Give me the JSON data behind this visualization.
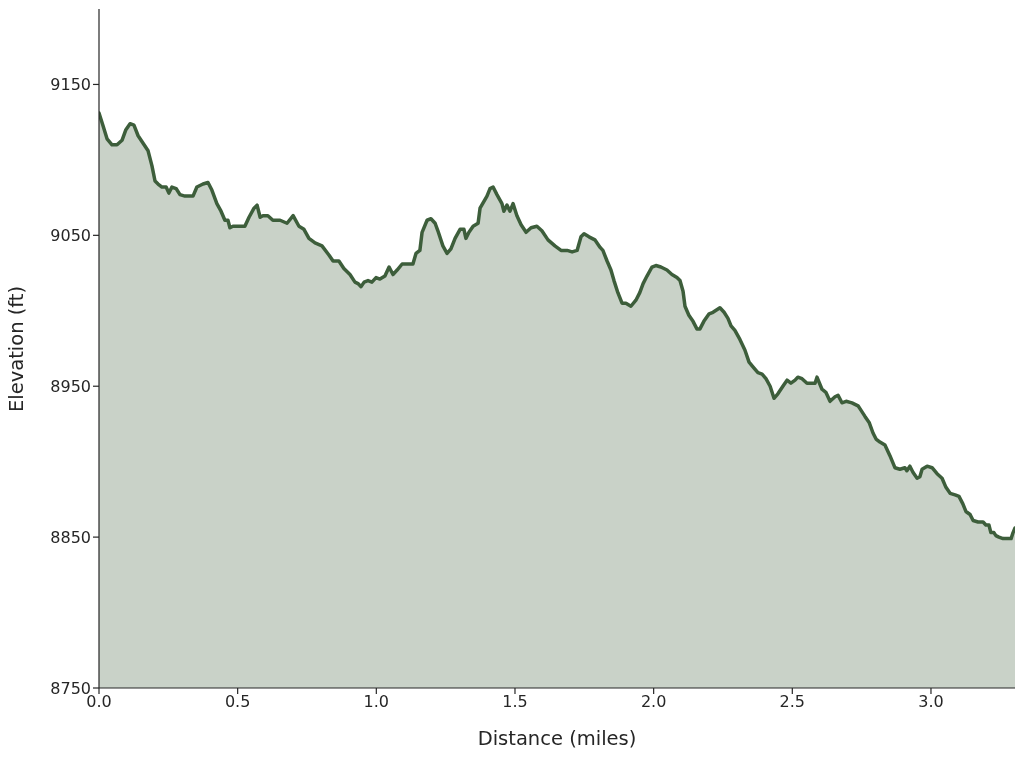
{
  "chart_data": {
    "type": "area",
    "xlabel": "Distance (miles)",
    "ylabel": "Elevation (ft)",
    "color": "#3d5e3b",
    "xlim": [
      0,
      3.303
    ],
    "ylim": [
      8750,
      9200
    ],
    "xticks": [
      {
        "value": 0,
        "label": "0.0"
      },
      0.5,
      {
        "value": 1,
        "label": "1.0"
      },
      1.5,
      {
        "value": 2,
        "label": "2.0"
      },
      2.5,
      {
        "value": 3,
        "label": "3.0"
      }
    ],
    "yticks": [
      8750,
      8850,
      8950,
      9050,
      9150
    ],
    "x": [
      0,
      0.014,
      0.029,
      0.047,
      0.065,
      0.083,
      0.097,
      0.112,
      0.126,
      0.141,
      0.159,
      0.177,
      0.191,
      0.202,
      0.213,
      0.227,
      0.242,
      0.252,
      0.263,
      0.278,
      0.292,
      0.31,
      0.339,
      0.353,
      0.375,
      0.393,
      0.407,
      0.425,
      0.44,
      0.454,
      0.465,
      0.472,
      0.483,
      0.498,
      0.526,
      0.541,
      0.559,
      0.57,
      0.581,
      0.591,
      0.609,
      0.627,
      0.653,
      0.678,
      0.7,
      0.721,
      0.739,
      0.757,
      0.779,
      0.804,
      0.829,
      0.844,
      0.865,
      0.883,
      0.905,
      0.923,
      0.934,
      0.945,
      0.956,
      0.97,
      0.984,
      0.999,
      1.013,
      1.031,
      1.046,
      1.06,
      1.075,
      1.093,
      1.114,
      1.132,
      1.143,
      1.157,
      1.165,
      1.183,
      1.197,
      1.212,
      1.222,
      1.24,
      1.255,
      1.269,
      1.284,
      1.302,
      1.316,
      1.323,
      1.334,
      1.349,
      1.367,
      1.374,
      1.399,
      1.41,
      1.421,
      1.435,
      1.453,
      1.46,
      1.471,
      1.482,
      1.493,
      1.507,
      1.522,
      1.54,
      1.558,
      1.579,
      1.597,
      1.619,
      1.644,
      1.666,
      1.688,
      1.706,
      1.724,
      1.738,
      1.749,
      1.767,
      1.788,
      1.807,
      1.817,
      1.832,
      1.846,
      1.857,
      1.871,
      1.886,
      1.9,
      1.918,
      1.936,
      1.95,
      1.962,
      1.976,
      1.994,
      2.008,
      2.026,
      2.048,
      2.066,
      2.084,
      2.095,
      2.106,
      2.113,
      2.127,
      2.142,
      2.156,
      2.167,
      2.181,
      2.2,
      2.214,
      2.239,
      2.254,
      2.268,
      2.279,
      2.293,
      2.311,
      2.329,
      2.344,
      2.362,
      2.376,
      2.391,
      2.405,
      2.42,
      2.434,
      2.448,
      2.466,
      2.481,
      2.495,
      2.51,
      2.52,
      2.535,
      2.553,
      2.564,
      2.582,
      2.589,
      2.607,
      2.621,
      2.636,
      2.654,
      2.665,
      2.679,
      2.694,
      2.715,
      2.737,
      2.748,
      2.762,
      2.777,
      2.791,
      2.802,
      2.816,
      2.834,
      2.852,
      2.87,
      2.888,
      2.906,
      2.913,
      2.924,
      2.935,
      2.95,
      2.96,
      2.968,
      2.986,
      3.004,
      3.022,
      3.04,
      3.054,
      3.069,
      3.087,
      3.101,
      3.115,
      3.126,
      3.141,
      3.152,
      3.17,
      3.188,
      3.198,
      3.209,
      3.216,
      3.227,
      3.234,
      3.245,
      3.26,
      3.274,
      3.289,
      3.296,
      3.303
    ],
    "values": [
      9131,
      9123,
      9114,
      9110,
      9110,
      9113,
      9120,
      9124,
      9123,
      9116,
      9111,
      9106,
      9096,
      9086,
      9084,
      9082,
      9082,
      9078,
      9082,
      9081,
      9077,
      9076,
      9076,
      9082,
      9084,
      9085,
      9080,
      9071,
      9066,
      9060,
      9060,
      9055,
      9056,
      9056,
      9056,
      9062,
      9068,
      9070,
      9062,
      9063,
      9063,
      9060,
      9060,
      9058,
      9063,
      9056,
      9054,
      9048,
      9045,
      9043,
      9037,
      9033,
      9033,
      9028,
      9024,
      9019,
      9018,
      9016,
      9019,
      9020,
      9019,
      9022,
      9021,
      9023,
      9029,
      9024,
      9027,
      9031,
      9031,
      9031,
      9038,
      9040,
      9052,
      9060,
      9061,
      9058,
      9053,
      9043,
      9038,
      9041,
      9048,
      9054,
      9054,
      9048,
      9052,
      9056,
      9058,
      9068,
      9076,
      9081,
      9082,
      9077,
      9071,
      9066,
      9070,
      9066,
      9071,
      9063,
      9057,
      9052,
      9055,
      9056,
      9053,
      9047,
      9043,
      9040,
      9040,
      9039,
      9040,
      9049,
      9051,
      9049,
      9047,
      9042,
      9040,
      9033,
      9027,
      9020,
      9012,
      9005,
      9005,
      9003,
      9007,
      9012,
      9018,
      9023,
      9029,
      9030,
      9029,
      9027,
      9024,
      9022,
      9020,
      9013,
      9003,
      8997,
      8993,
      8988,
      8988,
      8993,
      8998,
      8999,
      9002,
      8999,
      8995,
      8990,
      8987,
      8981,
      8974,
      8966,
      8962,
      8959,
      8958,
      8955,
      8950,
      8942,
      8945,
      8950,
      8954,
      8952,
      8954,
      8956,
      8955,
      8952,
      8952,
      8952,
      8956,
      8948,
      8946,
      8940,
      8943,
      8944,
      8939,
      8940,
      8939,
      8937,
      8934,
      8930,
      8926,
      8919,
      8915,
      8913,
      8911,
      8904,
      8896,
      8895,
      8896,
      8894,
      8897,
      8893,
      8889,
      8890,
      8895,
      8897,
      8896,
      8892,
      8889,
      8883,
      8879,
      8878,
      8877,
      8872,
      8867,
      8865,
      8861,
      8860,
      8860,
      8858,
      8858,
      8853,
      8853,
      8851,
      8850,
      8849,
      8849,
      8849,
      8853,
      8856
    ]
  }
}
